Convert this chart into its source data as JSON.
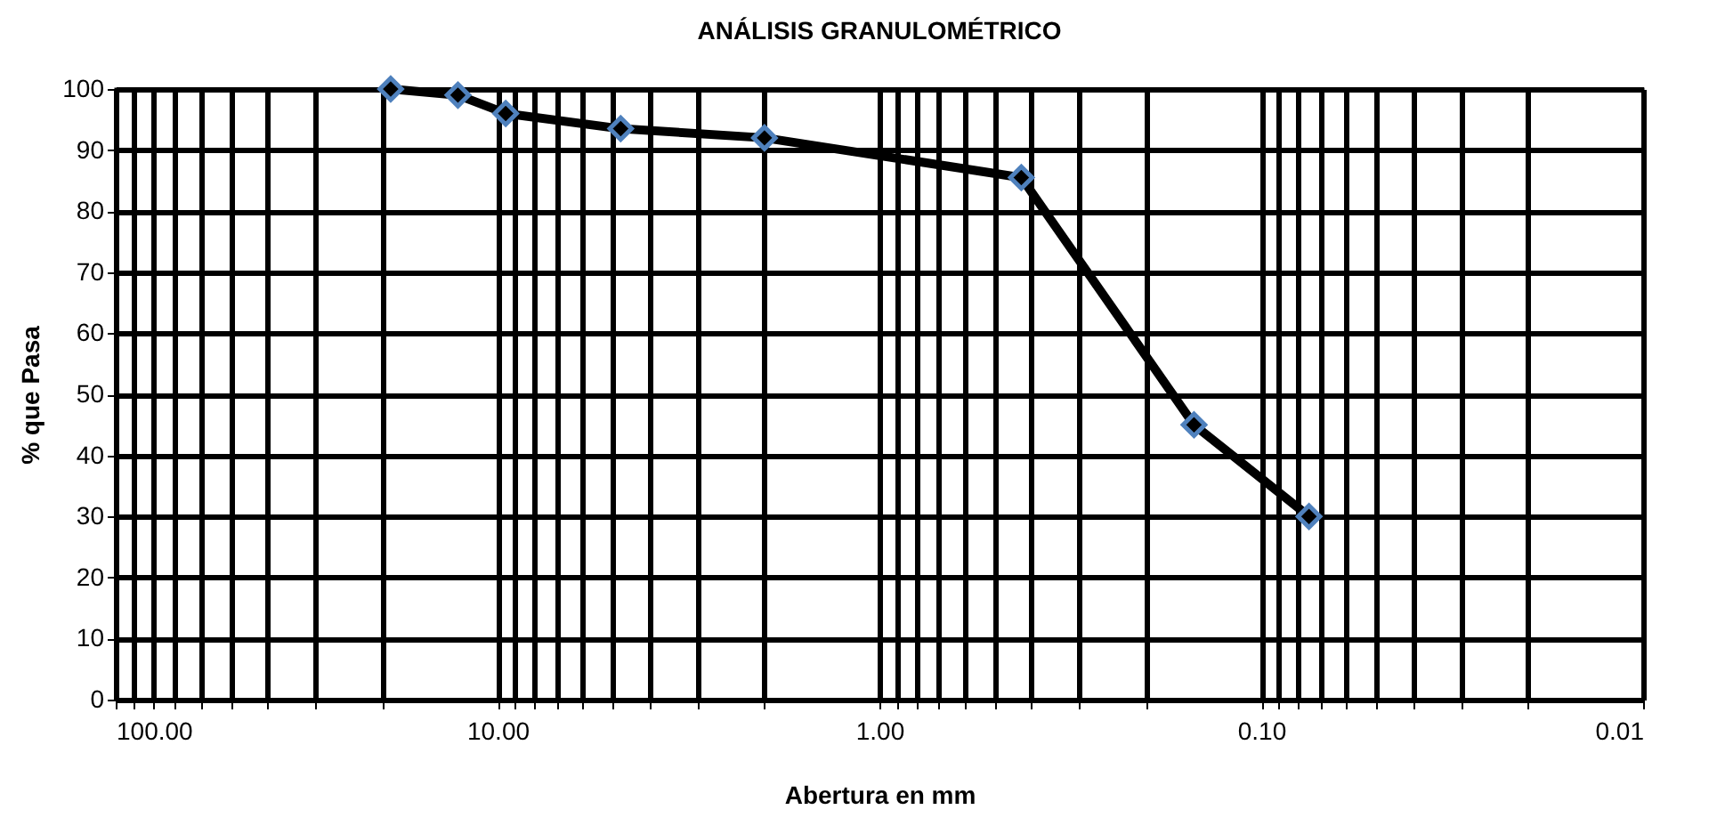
{
  "chart_data": {
    "type": "line",
    "title": "ANÁLISIS GRANULOMÉTRICO",
    "xlabel": "Abertura en mm",
    "ylabel": "% que Pasa",
    "x": [
      19.05,
      12.7,
      9.52,
      4.76,
      2.0,
      0.425,
      0.15,
      0.075
    ],
    "series": [
      {
        "color": "#000000",
        "values": [
          100,
          99,
          96,
          93.5,
          92,
          85.5,
          45,
          30
        ]
      }
    ],
    "log": "x",
    "marker": "diamond",
    "line_style": "solid",
    "grid": true,
    "xlim": [
      100,
      0.01
    ],
    "xticks": [
      {
        "value": 100,
        "label": "100.00"
      },
      {
        "value": 90,
        "label": null
      },
      {
        "value": 80,
        "label": null
      },
      {
        "value": 70,
        "label": null
      },
      {
        "value": 60,
        "label": null
      },
      {
        "value": 50,
        "label": null
      },
      {
        "value": 40,
        "label": null
      },
      {
        "value": 30,
        "label": null
      },
      {
        "value": 20,
        "label": null
      },
      {
        "value": 10,
        "label": "10.00"
      },
      {
        "value": 9,
        "label": null
      },
      {
        "value": 8,
        "label": null
      },
      {
        "value": 7,
        "label": null
      },
      {
        "value": 6,
        "label": null
      },
      {
        "value": 5,
        "label": null
      },
      {
        "value": 4,
        "label": null
      },
      {
        "value": 3,
        "label": null
      },
      {
        "value": 2,
        "label": null
      },
      {
        "value": 1,
        "label": "1.00"
      },
      {
        "value": 0.9,
        "label": null
      },
      {
        "value": 0.8,
        "label": null
      },
      {
        "value": 0.7,
        "label": null
      },
      {
        "value": 0.6,
        "label": null
      },
      {
        "value": 0.5,
        "label": null
      },
      {
        "value": 0.4,
        "label": null
      },
      {
        "value": 0.3,
        "label": null
      },
      {
        "value": 0.2,
        "label": null
      },
      {
        "value": 0.1,
        "label": "0.10"
      },
      {
        "value": 0.09,
        "label": null
      },
      {
        "value": 0.08,
        "label": null
      },
      {
        "value": 0.07,
        "label": null
      },
      {
        "value": 0.06,
        "label": null
      },
      {
        "value": 0.05,
        "label": null
      },
      {
        "value": 0.04,
        "label": null
      },
      {
        "value": 0.03,
        "label": null
      },
      {
        "value": 0.02,
        "label": null
      },
      {
        "value": 0.01,
        "label": "0.01"
      }
    ],
    "ylim": [
      0,
      100
    ],
    "yticks": [
      0,
      10,
      20,
      30,
      40,
      50,
      60,
      70,
      80,
      90,
      100
    ]
  }
}
